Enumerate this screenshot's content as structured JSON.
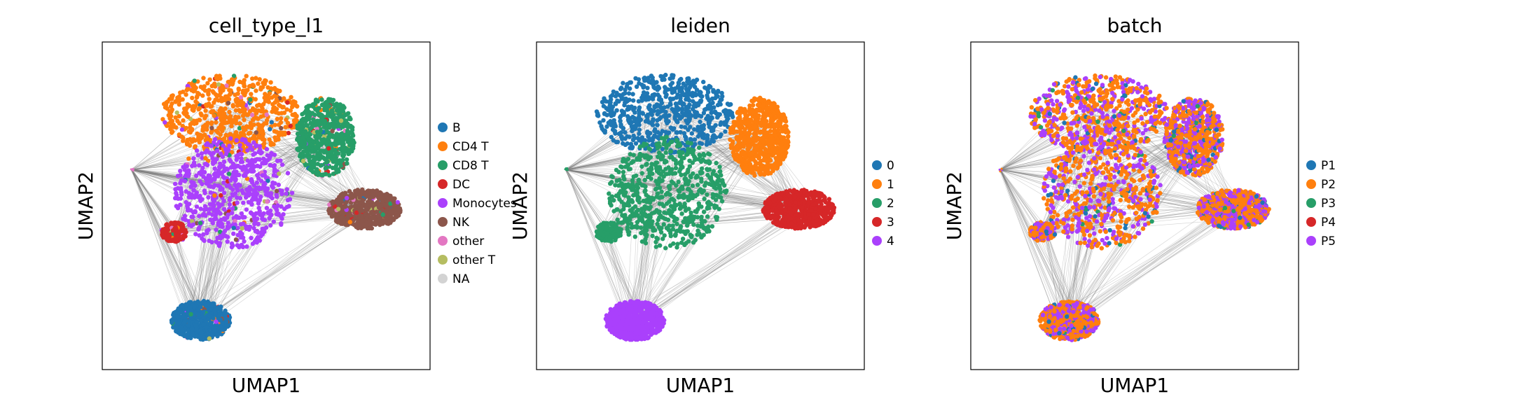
{
  "chart_data": [
    {
      "type": "scatter",
      "title": "cell_type_l1",
      "xlabel": "UMAP1",
      "ylabel": "UMAP2",
      "grid": false,
      "legend_placement": "right",
      "legend": [
        {
          "label": "B",
          "color": "#1f77b4"
        },
        {
          "label": "CD4 T",
          "color": "#ff7f0e"
        },
        {
          "label": "CD8 T",
          "color": "#279e68"
        },
        {
          "label": "DC",
          "color": "#d62728"
        },
        {
          "label": "Monocytes",
          "color": "#aa40fc"
        },
        {
          "label": "NK",
          "color": "#8c564b"
        },
        {
          "label": "other",
          "color": "#e377c2"
        },
        {
          "label": "other T",
          "color": "#b5bd61"
        },
        {
          "label": "NA",
          "color": "#d3d3d3"
        }
      ]
    },
    {
      "type": "scatter",
      "title": "leiden",
      "xlabel": "UMAP1",
      "ylabel": "UMAP2",
      "grid": false,
      "legend_placement": "right",
      "legend": [
        {
          "label": "0",
          "color": "#1f77b4"
        },
        {
          "label": "1",
          "color": "#ff7f0e"
        },
        {
          "label": "2",
          "color": "#279e68"
        },
        {
          "label": "3",
          "color": "#d62728"
        },
        {
          "label": "4",
          "color": "#aa40fc"
        }
      ]
    },
    {
      "type": "scatter",
      "title": "batch",
      "xlabel": "UMAP1",
      "ylabel": "UMAP2",
      "grid": false,
      "legend_placement": "right",
      "legend": [
        {
          "label": "P1",
          "color": "#1f77b4"
        },
        {
          "label": "P2",
          "color": "#ff7f0e"
        },
        {
          "label": "P3",
          "color": "#279e68"
        },
        {
          "label": "P4",
          "color": "#d62728"
        },
        {
          "label": "P5",
          "color": "#aa40fc"
        }
      ]
    }
  ],
  "colors": {
    "edge_gray": "#7f7f7f",
    "axis_frame": "#000000"
  }
}
